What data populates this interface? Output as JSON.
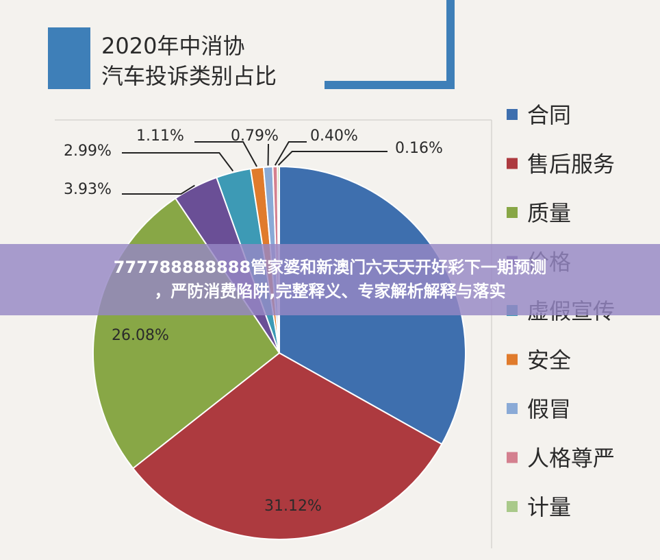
{
  "chart_data": {
    "type": "pie",
    "title_lines": [
      "2020年中消协",
      "汽车投诉类别占比"
    ],
    "categories": [
      "合同",
      "售后服务",
      "质量",
      "价格",
      "虚假宣传",
      "安全",
      "假冒",
      "人格尊严",
      "计量"
    ],
    "values": [
      32.99,
      31.12,
      26.08,
      3.93,
      2.99,
      1.11,
      0.79,
      0.4,
      0.16
    ],
    "labels": [
      "",
      "31.12%",
      "26.08%",
      "3.93%",
      "2.99%",
      "1.11%",
      "0.79%",
      "0.40%",
      "0.16%"
    ],
    "colors": [
      "#3e6fae",
      "#ad3a3f",
      "#88a746",
      "#6a4f96",
      "#3d9ab5",
      "#e07b2c",
      "#8aaad6",
      "#d4808f",
      "#a9c98a"
    ],
    "legend_position": "right"
  },
  "banner": {
    "line1": "777788888888管家婆和新澳门六天天开好彩下一期预测",
    "line2": "，严防消费陷阱,完整释义、专家解析解释与落实"
  }
}
